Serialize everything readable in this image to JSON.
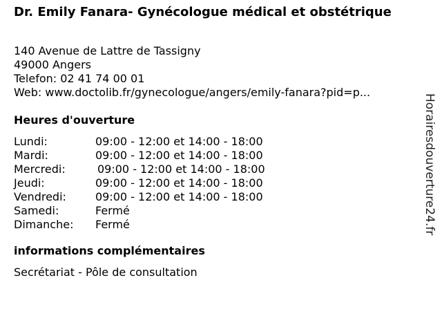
{
  "title": "Dr. Emily Fanara- Gynécologue médical et obstétrique",
  "address": {
    "street": "140 Avenue de Lattre de Tassigny",
    "city": "49000 Angers",
    "phone": "Telefon: 02 41 74 00 01",
    "web": "Web: www.doctolib.fr/gynecologue/angers/emily-fanara?pid=p..."
  },
  "hours_heading": "Heures d'ouverture",
  "hours": [
    {
      "day": "Lundi:",
      "time": "09:00 - 12:00 et 14:00 - 18:00"
    },
    {
      "day": "Mardi:",
      "time": "09:00 - 12:00 et 14:00 - 18:00"
    },
    {
      "day": "Mercredi:",
      "time": "09:00 - 12:00 et 14:00 - 18:00"
    },
    {
      "day": "Jeudi:",
      "time": "09:00 - 12:00 et 14:00 - 18:00"
    },
    {
      "day": "Vendredi:",
      "time": "09:00 - 12:00 et 14:00 - 18:00"
    },
    {
      "day": "Samedi:",
      "time": "Fermé"
    },
    {
      "day": "Dimanche:",
      "time": "Fermé"
    }
  ],
  "info_heading": "informations complémentaires",
  "info_text": "Secrétariat - Pôle de consultation",
  "watermark": "Horairesdouverture24.fr"
}
